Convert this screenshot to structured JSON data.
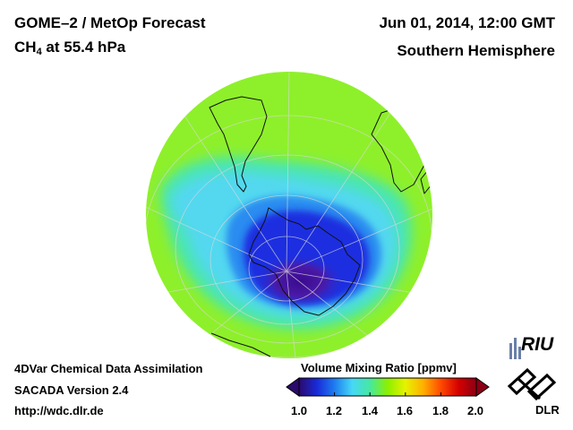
{
  "header": {
    "title": "GOME–2 / MetOp Forecast",
    "species_prefix": "CH",
    "species_sub": "4",
    "species_suffix": " at 55.4 hPa",
    "datetime": "Jun 01, 2014, 12:00 GMT",
    "hemisphere": "Southern Hemisphere"
  },
  "footer": {
    "line1": "4DVar Chemical Data Assimilation",
    "line2": "SACADA Version 2.4",
    "line3": "http://wdc.dlr.de"
  },
  "colorbar": {
    "title": "Volume Mixing Ratio [ppmv]",
    "ticks": [
      "1.0",
      "1.2",
      "1.4",
      "1.6",
      "1.8",
      "2.0"
    ],
    "min": 1.0,
    "max": 2.0,
    "colors": [
      "#2a0a6b",
      "#1a2ad8",
      "#1e7cf0",
      "#46d8f6",
      "#46e8a0",
      "#8cf000",
      "#e6f200",
      "#ffb000",
      "#ff4a00",
      "#d40000",
      "#8a0014"
    ]
  },
  "logos": {
    "riu": "RIU",
    "dlr": "DLR"
  },
  "map": {
    "projection": "orthographic",
    "center": "South Pole",
    "colors": {
      "background": "#8ef02a",
      "low_core": "#3a0a8e",
      "low_ring": "#1e2ee0",
      "mid_ring": "#2c8cf0",
      "cyan_band": "#52d8f0",
      "teal_band": "#4ae6b0"
    }
  }
}
